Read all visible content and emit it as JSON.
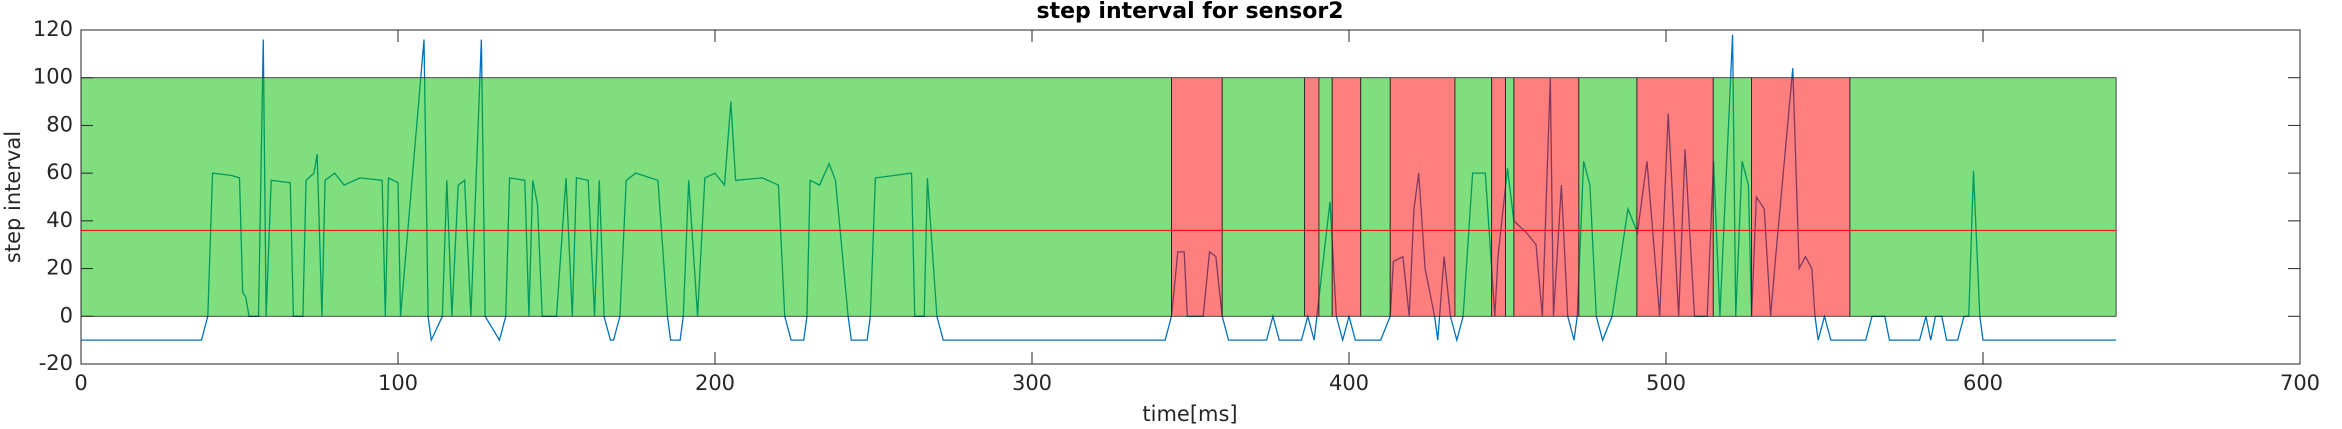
{
  "chart_data": {
    "type": "line",
    "title": "step interval for sensor2",
    "xlabel": "time[ms]",
    "ylabel": "step interval",
    "xlim": [
      0,
      700
    ],
    "ylim": [
      -20,
      120
    ],
    "xticks": [
      0,
      100,
      200,
      300,
      400,
      500,
      600,
      700
    ],
    "yticks": [
      -20,
      0,
      20,
      40,
      60,
      80,
      100,
      120
    ],
    "grid": false,
    "region_range": [
      0,
      100
    ],
    "regions": [
      {
        "start": 0,
        "end": 344,
        "color": "#00c000"
      },
      {
        "start": 344,
        "end": 360,
        "color": "#ff0000"
      },
      {
        "start": 360,
        "end": 386,
        "color": "#00c000"
      },
      {
        "start": 386,
        "end": 390.5,
        "color": "#ff0000"
      },
      {
        "start": 390.5,
        "end": 394.7,
        "color": "#00c000"
      },
      {
        "start": 394.7,
        "end": 403.7,
        "color": "#ff0000"
      },
      {
        "start": 403.7,
        "end": 413,
        "color": "#00c000"
      },
      {
        "start": 413,
        "end": 433.4,
        "color": "#ff0000"
      },
      {
        "start": 433.4,
        "end": 445,
        "color": "#00c000"
      },
      {
        "start": 445,
        "end": 449.4,
        "color": "#ff0000"
      },
      {
        "start": 449.4,
        "end": 452,
        "color": "#00c000"
      },
      {
        "start": 452,
        "end": 472.5,
        "color": "#ff0000"
      },
      {
        "start": 472.5,
        "end": 490.8,
        "color": "#00c000"
      },
      {
        "start": 490.8,
        "end": 514.9,
        "color": "#ff0000"
      },
      {
        "start": 514.9,
        "end": 527,
        "color": "#00c000"
      },
      {
        "start": 527,
        "end": 558,
        "color": "#ff0000"
      },
      {
        "start": 558,
        "end": 642,
        "color": "#00c000"
      }
    ],
    "threshold": 36,
    "threshold_range": [
      0,
      642
    ],
    "threshold_color": "#ff0000",
    "series": [
      {
        "color": "#0072bd",
        "x": [
          0,
          38,
          40,
          41.5,
          47.5,
          50,
          51,
          52,
          53,
          56,
          57.5,
          58.4,
          60,
          66,
          67,
          70,
          71,
          73.5,
          74.5,
          76,
          77,
          80,
          83,
          88,
          95,
          96,
          97,
          100,
          100.8,
          108.2,
          109.5,
          110.5,
          114,
          115.4,
          117,
          119,
          121,
          123,
          126.3,
          127.5,
          132,
          134,
          135.2,
          140,
          141.3,
          142.5,
          144,
          145.5,
          150,
          153,
          155,
          156.3,
          160,
          162,
          163.5,
          165,
          167,
          168,
          170,
          172,
          175,
          182,
          185,
          186,
          189,
          190,
          191.7,
          194.5,
          196.8,
          200,
          203,
          205,
          206.5,
          215,
          220,
          222,
          224,
          228,
          229,
          230,
          233,
          236,
          238,
          242,
          243,
          248,
          249,
          250.6,
          262,
          263,
          266,
          267,
          270,
          272,
          276,
          342,
          344,
          346,
          348,
          349,
          354,
          356,
          358,
          360,
          362,
          374,
          376,
          378,
          385,
          387,
          389,
          394,
          396,
          398,
          400,
          402,
          410,
          413,
          414,
          417,
          419,
          420.5,
          422,
          424,
          427,
          428,
          430,
          432,
          434,
          436,
          439,
          443,
          446,
          447,
          450,
          452,
          456,
          459,
          461,
          463.5,
          464.5,
          467,
          469,
          471,
          472,
          474,
          476,
          478,
          480,
          483,
          488,
          491,
          494,
          498,
          500.7,
          504,
          506,
          509,
          513,
          515,
          517,
          521,
          522,
          524,
          526,
          527,
          528.5,
          531,
          533,
          534.6,
          540,
          542,
          544,
          546,
          547,
          548,
          550,
          552,
          563,
          565,
          569,
          570.5,
          580,
          582,
          583.5,
          585,
          587,
          588.5,
          592,
          594,
          595.5,
          597,
          599,
          600,
          642
        ],
        "values": [
          -10,
          -10,
          0,
          60,
          59,
          58,
          10,
          8,
          0,
          0,
          116,
          0,
          57,
          56,
          0,
          0,
          57,
          60,
          68,
          0,
          57,
          60,
          55,
          58,
          57,
          0,
          58,
          56,
          0,
          116,
          0,
          -10,
          0,
          57,
          0,
          55,
          57,
          0,
          116,
          0,
          -10,
          0,
          58,
          57,
          0,
          57,
          47,
          0,
          0,
          58,
          0,
          58,
          57,
          0,
          57,
          0,
          -10,
          -10,
          0,
          57,
          60,
          57,
          0,
          -10,
          -10,
          0,
          57,
          0,
          58,
          60,
          55,
          90,
          57,
          58,
          55,
          0,
          -10,
          -10,
          0,
          57,
          55,
          64,
          57,
          0,
          -10,
          -10,
          0,
          58,
          60,
          0,
          0,
          58,
          0,
          -10,
          -10,
          -10,
          0,
          27,
          27,
          0,
          0,
          27,
          25,
          0,
          -10,
          -10,
          0,
          -10,
          -10,
          0,
          -10,
          48,
          0,
          -10,
          0,
          -10,
          -10,
          0,
          23,
          25,
          0,
          45,
          60,
          20,
          0,
          -10,
          25,
          0,
          -10,
          0,
          60,
          60,
          0,
          25,
          62,
          40,
          35,
          30,
          0,
          100,
          0,
          55,
          0,
          -10,
          0,
          65,
          55,
          0,
          -10,
          0,
          45,
          35,
          65,
          0,
          85,
          0,
          70,
          0,
          0,
          65,
          0,
          118,
          0,
          65,
          55,
          0,
          50,
          45,
          0,
          25,
          104,
          20,
          25,
          20,
          0,
          -10,
          0,
          -10,
          -10,
          0,
          0,
          -10,
          -10,
          0,
          -10,
          0,
          0,
          -10,
          -10,
          0,
          0,
          61,
          0,
          -10,
          -10
        ]
      }
    ]
  }
}
